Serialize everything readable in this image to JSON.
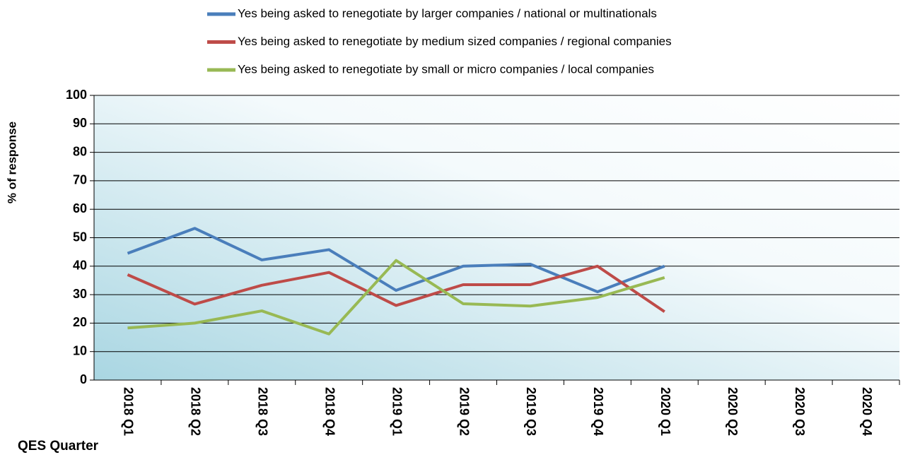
{
  "chart_data": {
    "type": "line",
    "y_label": "% of response",
    "x_label": "QES Quarter",
    "categories": [
      "2018 Q1",
      "2018 Q2",
      "2018 Q3",
      "2018 Q4",
      "2019 Q1",
      "2019 Q2",
      "2019 Q3",
      "2019 Q4",
      "2020 Q1",
      "2020 Q2",
      "2020 Q3",
      "2020 Q4"
    ],
    "series": [
      {
        "name": "Yes being asked to renegotiate by larger companies / national or multinationals",
        "color": "#4a7ebb",
        "values": [
          44.5,
          53.3,
          42.2,
          45.8,
          31.5,
          40,
          40.7,
          31,
          40,
          null,
          null,
          null
        ]
      },
      {
        "name": "Yes being asked to renegotiate by medium sized companies / regional companies",
        "color": "#be4b48",
        "values": [
          37,
          26.7,
          33.3,
          37.8,
          26.2,
          33.5,
          33.5,
          40,
          24,
          null,
          null,
          null
        ]
      },
      {
        "name": "Yes being asked to renegotiate by small or micro companies / local companies",
        "color": "#98b954",
        "values": [
          18.3,
          20,
          24.3,
          16.2,
          42,
          26.8,
          26,
          29,
          36,
          null,
          null,
          null
        ]
      }
    ],
    "ylim": [
      0,
      100
    ],
    "yticks": [
      0,
      10,
      20,
      30,
      40,
      50,
      60,
      70,
      80,
      90,
      100
    ],
    "grid": true
  }
}
